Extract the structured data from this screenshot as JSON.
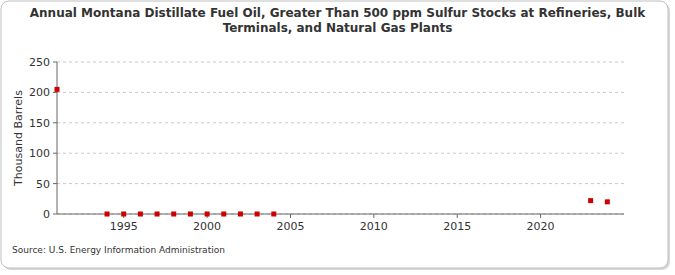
{
  "chart_data": {
    "type": "scatter",
    "title": "Annual Montana Distillate Fuel Oil, Greater Than 500 ppm Sulfur Stocks at Refineries, Bulk\nTerminals, and Natural Gas Plants",
    "y_label": "Thousand Barrels",
    "source": "Source: U.S. Energy Information Administration",
    "x": [
      1991,
      1994,
      1995,
      1996,
      1997,
      1998,
      1999,
      2000,
      2001,
      2002,
      2003,
      2004,
      2023,
      2024
    ],
    "values": [
      205,
      0,
      0,
      0,
      0,
      0,
      0,
      0,
      0,
      0,
      0,
      0,
      22,
      20
    ],
    "color": "#cc0000",
    "marker": "square",
    "xlim": [
      1991,
      2025
    ],
    "xticks": [
      1995,
      2000,
      2005,
      2010,
      2015,
      2020
    ],
    "ylim": [
      0,
      250
    ],
    "yticks": [
      0,
      50,
      100,
      150,
      200,
      250
    ],
    "grid": true
  }
}
